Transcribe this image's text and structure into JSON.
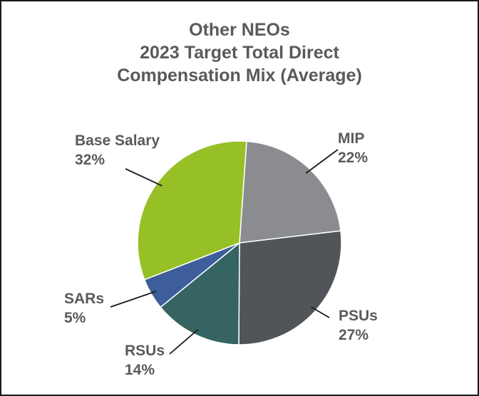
{
  "chart_data": {
    "type": "pie",
    "title_lines": [
      "Other NEOs",
      "2023 Target Total Direct",
      "Compensation Mix (Average)"
    ],
    "slices": [
      {
        "name": "MIP",
        "pct_label": "22%",
        "value": 22,
        "color": "#8a8c8f"
      },
      {
        "name": "PSUs",
        "pct_label": "27%",
        "value": 27,
        "color": "#515559"
      },
      {
        "name": "RSUs",
        "pct_label": "14%",
        "value": 14,
        "color": "#356462"
      },
      {
        "name": "SARs",
        "pct_label": "5%",
        "value": 5,
        "color": "#3d5e9a"
      },
      {
        "name": "Base Salary",
        "pct_label": "32%",
        "value": 32,
        "color": "#97c027"
      }
    ]
  }
}
